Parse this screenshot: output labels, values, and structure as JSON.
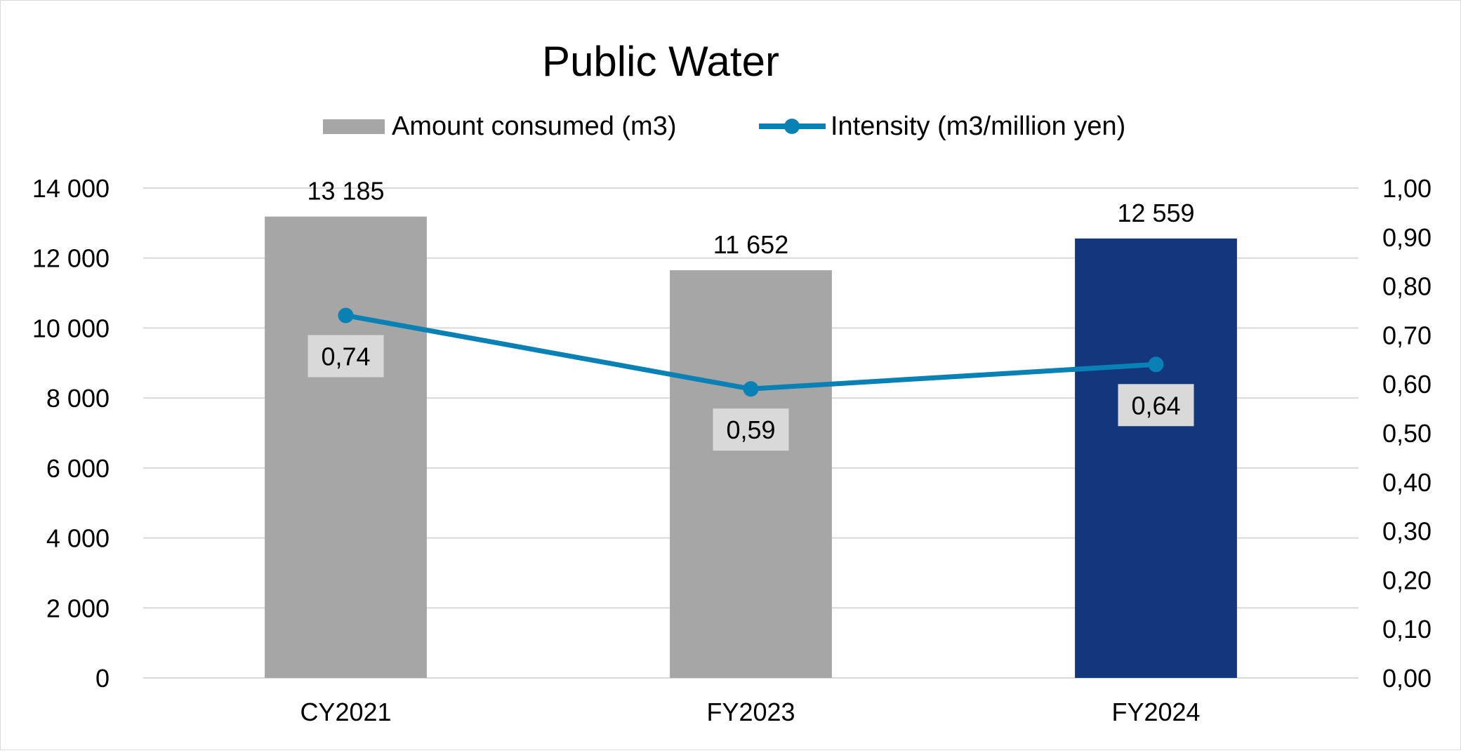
{
  "chart_data": {
    "type": "bar",
    "title": "Public Water",
    "categories": [
      "CY2021",
      "FY2023",
      "FY2024"
    ],
    "series": [
      {
        "name": "Amount consumed (m3)",
        "kind": "bar",
        "axis": "left",
        "values": [
          13185,
          11652,
          12559
        ],
        "labels": [
          "13 185",
          "11 652",
          "12 559"
        ],
        "colors": [
          "#a6a6a6",
          "#a6a6a6",
          "#13377d"
        ]
      },
      {
        "name": "Intensity (m3/million yen)",
        "kind": "line",
        "axis": "right",
        "values": [
          0.74,
          0.59,
          0.64
        ],
        "labels": [
          "0,74",
          "0,59",
          "0,64"
        ],
        "color": "#0a81b5"
      }
    ],
    "left_axis": {
      "ylim": [
        0,
        14000
      ],
      "ticks": [
        0,
        2000,
        4000,
        6000,
        8000,
        10000,
        12000,
        14000
      ],
      "tick_labels": [
        "0",
        "2 000",
        "4 000",
        "6 000",
        "8 000",
        "10 000",
        "12 000",
        "14 000"
      ]
    },
    "right_axis": {
      "ylim": [
        0,
        1
      ],
      "ticks": [
        0,
        0.1,
        0.2,
        0.3,
        0.4,
        0.5,
        0.6,
        0.7,
        0.8,
        0.9,
        1.0
      ],
      "tick_labels": [
        "0,00",
        "0,10",
        "0,20",
        "0,30",
        "0,40",
        "0,50",
        "0,60",
        "0,70",
        "0,80",
        "0,90",
        "1,00"
      ]
    },
    "grid": true,
    "legend_position": "top",
    "colors": {
      "gridline": "#d9d9d9",
      "label_box": "#d9d9d9"
    }
  }
}
